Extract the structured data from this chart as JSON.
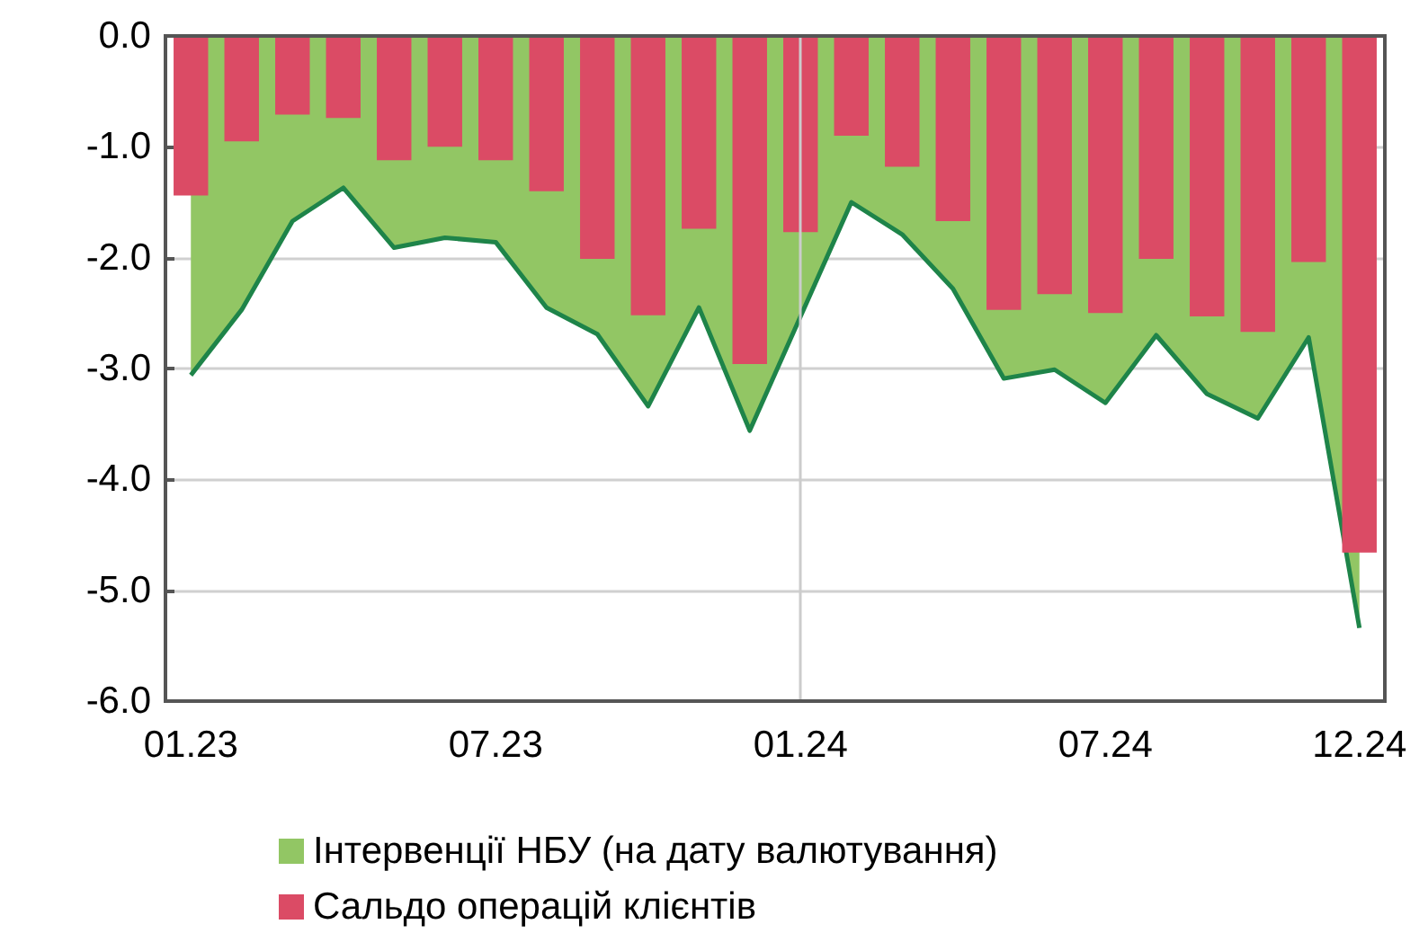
{
  "chart_data": {
    "type": "bar",
    "categories": [
      "01.23",
      null,
      null,
      null,
      null,
      null,
      "07.23",
      null,
      null,
      null,
      null,
      null,
      "01.24",
      null,
      null,
      null,
      null,
      null,
      "07.24",
      null,
      null,
      null,
      null,
      "12.24"
    ],
    "series": [
      {
        "name": "Інтервенції НБУ (на дату валютування)",
        "type": "area",
        "color": "#92c664",
        "values": [
          -3.06,
          -2.47,
          -1.67,
          -1.37,
          -1.91,
          -1.82,
          -1.86,
          -2.45,
          -2.69,
          -3.34,
          -2.45,
          -3.56,
          -2.53,
          -1.5,
          -1.79,
          -2.28,
          -3.09,
          -3.01,
          -3.31,
          -2.7,
          -3.23,
          -3.45,
          -2.72,
          -5.34
        ]
      },
      {
        "name": "Сальдо операцій клієнтів",
        "color": "#db4b65",
        "values": [
          -1.44,
          -0.95,
          -0.71,
          -0.74,
          -1.12,
          -1.0,
          -1.12,
          -1.4,
          -2.01,
          -2.52,
          -1.74,
          -2.96,
          -1.77,
          -0.9,
          -1.18,
          -1.67,
          -2.47,
          -2.33,
          -2.5,
          -2.01,
          -2.53,
          -2.67,
          -2.04,
          -4.66
        ]
      }
    ],
    "ylim": [
      -6,
      0
    ],
    "yticks": [
      {
        "value": -6,
        "label": "-6.0"
      },
      {
        "value": -5,
        "label": "-5.0"
      },
      {
        "value": -4,
        "label": "-4.0"
      },
      {
        "value": -3,
        "label": "-3.0"
      },
      {
        "value": -2,
        "label": "-2.0"
      },
      {
        "value": -1,
        "label": "-1.0"
      },
      {
        "value": 0,
        "label": "0.0"
      }
    ],
    "ref_lines": [
      {
        "axis": "x",
        "value": "01.24",
        "color": "#cccccc"
      }
    ],
    "grid": "y",
    "legend": "bottom"
  }
}
